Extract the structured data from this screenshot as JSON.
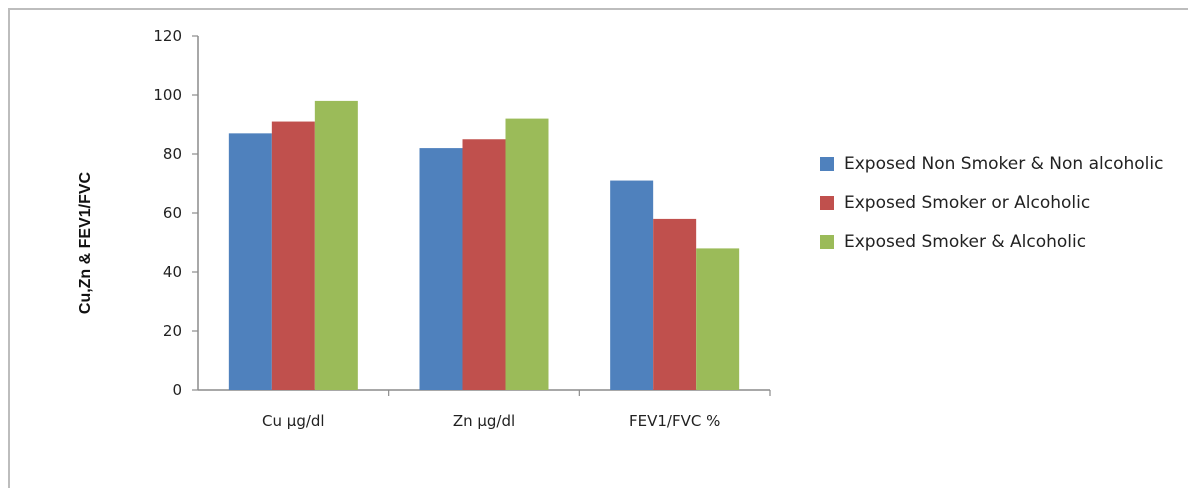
{
  "chart_data": {
    "type": "bar",
    "title": "",
    "xlabel": "",
    "ylabel": "Cu,Zn & FEV1/FVC",
    "categories": [
      "Cu µg/dl",
      "Zn µg/dl",
      "FEV1/FVC %"
    ],
    "series": [
      {
        "name": "Exposed Non Smoker & Non alcoholic",
        "color": "#4F81BD",
        "values": [
          87,
          82,
          71
        ]
      },
      {
        "name": "Exposed Smoker or Alcoholic",
        "color": "#C0504D",
        "values": [
          91,
          85,
          58
        ]
      },
      {
        "name": "Exposed Smoker & Alcoholic",
        "color": "#9BBB59",
        "values": [
          98,
          92,
          48
        ]
      }
    ],
    "ylim": [
      0,
      120
    ],
    "yticks": [
      0,
      20,
      40,
      60,
      80,
      100,
      120
    ],
    "grid": false,
    "legend": "right"
  }
}
